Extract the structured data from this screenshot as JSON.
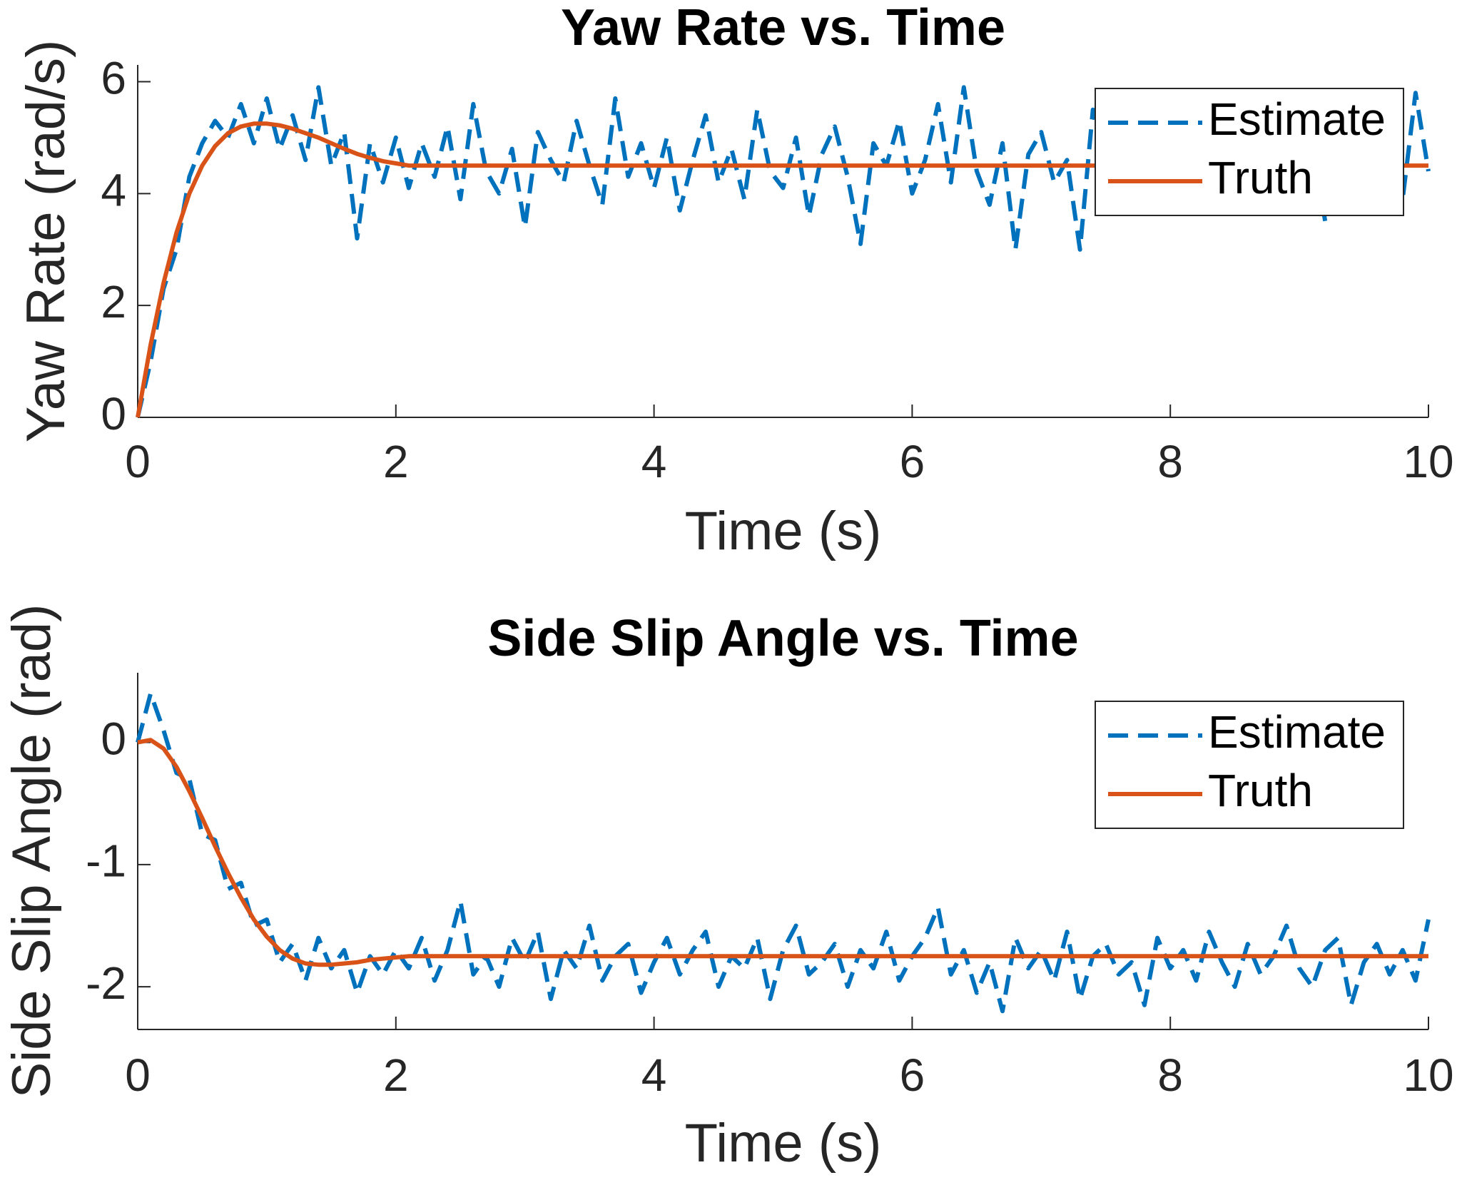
{
  "chart_data": [
    {
      "type": "line",
      "title": "Yaw Rate vs. Time",
      "x_label": "Time (s)",
      "y_label": "Yaw Rate (rad/s)",
      "x": [
        0,
        0.1,
        0.2,
        0.3,
        0.4,
        0.5,
        0.6,
        0.7,
        0.8,
        0.9,
        1,
        1.1,
        1.2,
        1.3,
        1.4,
        1.5,
        1.6,
        1.7,
        1.8,
        1.9,
        2,
        2.1,
        2.2,
        2.3,
        2.4,
        2.5,
        2.6,
        2.7,
        2.8,
        2.9,
        3,
        3.1,
        3.2,
        3.3,
        3.4,
        3.5,
        3.6,
        3.7,
        3.8,
        3.9,
        4,
        4.1,
        4.2,
        4.3,
        4.4,
        4.5,
        4.6,
        4.7,
        4.8,
        4.9,
        5,
        5.1,
        5.2,
        5.3,
        5.4,
        5.5,
        5.6,
        5.7,
        5.8,
        5.9,
        6,
        6.1,
        6.2,
        6.3,
        6.4,
        6.5,
        6.6,
        6.7,
        6.8,
        6.9,
        7,
        7.1,
        7.2,
        7.3,
        7.4,
        7.5,
        7.6,
        7.7,
        7.8,
        7.9,
        8,
        8.1,
        8.2,
        8.3,
        8.4,
        8.5,
        8.6,
        8.7,
        8.8,
        8.9,
        9,
        9.1,
        9.2,
        9.3,
        9.4,
        9.5,
        9.6,
        9.7,
        9.8,
        9.9,
        10
      ],
      "series": [
        {
          "name": "Estimate",
          "color": "#0072bd",
          "dashed": true,
          "values": [
            0,
            1.0,
            2.3,
            3.0,
            4.3,
            4.9,
            5.3,
            5.0,
            5.6,
            4.9,
            5.7,
            4.8,
            5.4,
            4.6,
            5.9,
            4.5,
            5.1,
            3.2,
            4.9,
            4.2,
            5.0,
            4.1,
            4.9,
            4.3,
            5.2,
            3.9,
            5.6,
            4.4,
            4.0,
            4.8,
            3.4,
            5.1,
            4.6,
            4.2,
            5.3,
            4.5,
            3.8,
            5.7,
            4.3,
            4.9,
            4.1,
            5.0,
            3.7,
            4.6,
            5.4,
            4.2,
            4.8,
            3.9,
            5.5,
            4.4,
            4.1,
            5.0,
            3.6,
            4.7,
            5.2,
            4.3,
            3.1,
            4.9,
            4.5,
            5.3,
            4.0,
            4.6,
            5.6,
            4.2,
            5.9,
            4.4,
            3.8,
            4.9,
            3.0,
            4.7,
            5.1,
            4.2,
            4.6,
            3.0,
            5.5,
            4.3,
            4.8,
            3.9,
            5.2,
            4.4,
            4.7,
            3.7,
            5.0,
            4.3,
            5.3,
            4.1,
            4.8,
            3.8,
            4.6,
            5.1,
            4.2,
            4.9,
            3.5,
            4.7,
            5.4,
            4.0,
            4.6,
            5.2,
            3.9,
            5.8,
            4.4
          ]
        },
        {
          "name": "Truth",
          "color": "#d95319",
          "dashed": false,
          "values": [
            0,
            1.3,
            2.4,
            3.3,
            4.0,
            4.5,
            4.85,
            5.08,
            5.2,
            5.25,
            5.25,
            5.22,
            5.16,
            5.08,
            5.0,
            4.9,
            4.8,
            4.71,
            4.64,
            4.58,
            4.54,
            4.5,
            4.5,
            4.5,
            4.5,
            4.5,
            4.5,
            4.5,
            4.5,
            4.5,
            4.5,
            4.5,
            4.5,
            4.5,
            4.5,
            4.5,
            4.5,
            4.5,
            4.5,
            4.5,
            4.5,
            4.5,
            4.5,
            4.5,
            4.5,
            4.5,
            4.5,
            4.5,
            4.5,
            4.5,
            4.5,
            4.5,
            4.5,
            4.5,
            4.5,
            4.5,
            4.5,
            4.5,
            4.5,
            4.5,
            4.5,
            4.5,
            4.5,
            4.5,
            4.5,
            4.5,
            4.5,
            4.5,
            4.5,
            4.5,
            4.5,
            4.5,
            4.5,
            4.5,
            4.5,
            4.5,
            4.5,
            4.5,
            4.5,
            4.5,
            4.5,
            4.5,
            4.5,
            4.5,
            4.5,
            4.5,
            4.5,
            4.5,
            4.5,
            4.5,
            4.5,
            4.5,
            4.5,
            4.5,
            4.5,
            4.5,
            4.5,
            4.5,
            4.5,
            4.5,
            4.5
          ]
        }
      ],
      "xlim": [
        0,
        10
      ],
      "xticks": [
        0,
        2,
        4,
        6,
        8,
        10
      ],
      "ylim": [
        0,
        6.3
      ],
      "yticks": [
        0,
        2,
        4,
        6
      ],
      "legend": "northeast"
    },
    {
      "type": "line",
      "title": "Side Slip Angle vs. Time",
      "x_label": "Time (s)",
      "y_label": "Side Slip Angle (rad)",
      "x": [
        0,
        0.1,
        0.2,
        0.3,
        0.4,
        0.5,
        0.6,
        0.7,
        0.8,
        0.9,
        1,
        1.1,
        1.2,
        1.3,
        1.4,
        1.5,
        1.6,
        1.7,
        1.8,
        1.9,
        2,
        2.1,
        2.2,
        2.3,
        2.4,
        2.5,
        2.6,
        2.7,
        2.8,
        2.9,
        3,
        3.1,
        3.2,
        3.3,
        3.4,
        3.5,
        3.6,
        3.7,
        3.8,
        3.9,
        4,
        4.1,
        4.2,
        4.3,
        4.4,
        4.5,
        4.6,
        4.7,
        4.8,
        4.9,
        5,
        5.1,
        5.2,
        5.3,
        5.4,
        5.5,
        5.6,
        5.7,
        5.8,
        5.9,
        6,
        6.1,
        6.2,
        6.3,
        6.4,
        6.5,
        6.6,
        6.7,
        6.8,
        6.9,
        7,
        7.1,
        7.2,
        7.3,
        7.4,
        7.5,
        7.6,
        7.7,
        7.8,
        7.9,
        8,
        8.1,
        8.2,
        8.3,
        8.4,
        8.5,
        8.6,
        8.7,
        8.8,
        8.9,
        9,
        9.1,
        9.2,
        9.3,
        9.4,
        9.5,
        9.6,
        9.7,
        9.8,
        9.9,
        10
      ],
      "series": [
        {
          "name": "Estimate",
          "color": "#0072bd",
          "dashed": true,
          "values": [
            0,
            0.4,
            0.1,
            -0.25,
            -0.3,
            -0.75,
            -0.8,
            -1.2,
            -1.15,
            -1.5,
            -1.45,
            -1.8,
            -1.65,
            -1.95,
            -1.6,
            -1.85,
            -1.7,
            -2.05,
            -1.75,
            -1.9,
            -1.7,
            -1.85,
            -1.6,
            -1.95,
            -1.7,
            -1.3,
            -1.9,
            -1.75,
            -2.0,
            -1.6,
            -1.8,
            -1.55,
            -2.1,
            -1.7,
            -1.85,
            -1.5,
            -1.95,
            -1.75,
            -1.65,
            -2.05,
            -1.8,
            -1.6,
            -1.9,
            -1.7,
            -1.55,
            -2.0,
            -1.75,
            -1.85,
            -1.6,
            -2.1,
            -1.7,
            -1.5,
            -1.9,
            -1.8,
            -1.65,
            -2.0,
            -1.7,
            -1.85,
            -1.55,
            -1.95,
            -1.75,
            -1.6,
            -1.35,
            -1.9,
            -1.7,
            -2.05,
            -1.8,
            -2.2,
            -1.6,
            -1.85,
            -1.7,
            -1.95,
            -1.55,
            -2.1,
            -1.75,
            -1.65,
            -1.9,
            -1.8,
            -2.15,
            -1.6,
            -1.85,
            -1.7,
            -1.95,
            -1.55,
            -1.8,
            -2.0,
            -1.65,
            -1.9,
            -1.75,
            -1.5,
            -1.85,
            -2.0,
            -1.7,
            -1.6,
            -2.15,
            -1.8,
            -1.65,
            -1.9,
            -1.7,
            -1.95,
            -1.45
          ]
        },
        {
          "name": "Truth",
          "color": "#d95319",
          "dashed": false,
          "values": [
            0,
            0.02,
            -0.05,
            -0.2,
            -0.4,
            -0.62,
            -0.85,
            -1.07,
            -1.27,
            -1.45,
            -1.59,
            -1.7,
            -1.77,
            -1.81,
            -1.82,
            -1.82,
            -1.81,
            -1.8,
            -1.78,
            -1.77,
            -1.76,
            -1.75,
            -1.75,
            -1.75,
            -1.75,
            -1.75,
            -1.75,
            -1.75,
            -1.75,
            -1.75,
            -1.75,
            -1.75,
            -1.75,
            -1.75,
            -1.75,
            -1.75,
            -1.75,
            -1.75,
            -1.75,
            -1.75,
            -1.75,
            -1.75,
            -1.75,
            -1.75,
            -1.75,
            -1.75,
            -1.75,
            -1.75,
            -1.75,
            -1.75,
            -1.75,
            -1.75,
            -1.75,
            -1.75,
            -1.75,
            -1.75,
            -1.75,
            -1.75,
            -1.75,
            -1.75,
            -1.75,
            -1.75,
            -1.75,
            -1.75,
            -1.75,
            -1.75,
            -1.75,
            -1.75,
            -1.75,
            -1.75,
            -1.75,
            -1.75,
            -1.75,
            -1.75,
            -1.75,
            -1.75,
            -1.75,
            -1.75,
            -1.75,
            -1.75,
            -1.75,
            -1.75,
            -1.75,
            -1.75,
            -1.75,
            -1.75,
            -1.75,
            -1.75,
            -1.75,
            -1.75,
            -1.75,
            -1.75,
            -1.75,
            -1.75,
            -1.75,
            -1.75,
            -1.75,
            -1.75,
            -1.75,
            -1.75,
            -1.75
          ]
        }
      ],
      "xlim": [
        0,
        10
      ],
      "xticks": [
        0,
        2,
        4,
        6,
        8,
        10
      ],
      "ylim": [
        -2.35,
        0.57
      ],
      "yticks": [
        -2,
        -1,
        0
      ],
      "legend": "northeast"
    }
  ]
}
